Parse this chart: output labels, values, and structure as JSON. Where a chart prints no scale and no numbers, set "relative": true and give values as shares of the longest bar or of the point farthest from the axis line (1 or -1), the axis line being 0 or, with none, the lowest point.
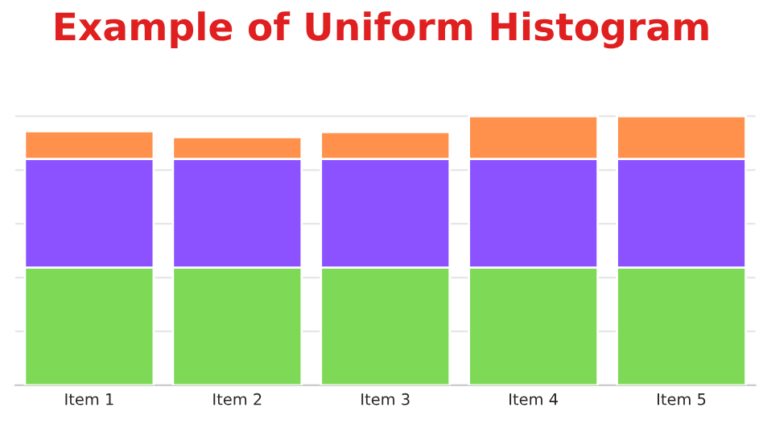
{
  "chart_data": {
    "type": "bar",
    "title": "Example of Uniform Histogram",
    "relative": true,
    "stacked": true,
    "grid": "y",
    "categories": [
      "Item 1",
      "Item 2",
      "Item 3",
      "Item 4",
      "Item 5"
    ],
    "series": [
      {
        "color": "#7ed957",
        "values": [
          0.437,
          0.437,
          0.437,
          0.437,
          0.437
        ]
      },
      {
        "color": "#8c52ff",
        "values": [
          0.404,
          0.404,
          0.404,
          0.404,
          0.404
        ]
      },
      {
        "color": "#ff914d",
        "values": [
          0.103,
          0.081,
          0.1,
          0.159,
          0.159
        ]
      }
    ]
  }
}
